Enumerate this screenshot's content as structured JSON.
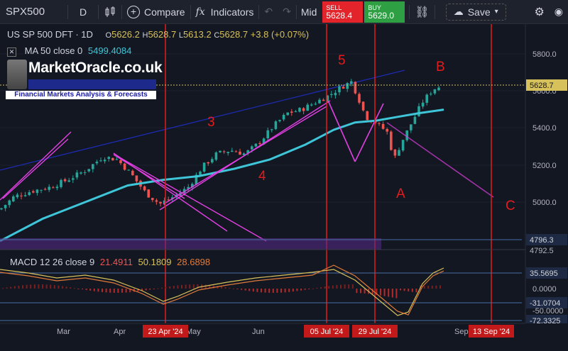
{
  "toolbar": {
    "symbol": "SPX500",
    "interval": "D",
    "compare": "Compare",
    "indicators": "Indicators",
    "price_type": "Mid",
    "sell_label": "SELL",
    "sell_price": "5628.4",
    "buy_label": "BUY",
    "buy_price": "5629.0",
    "save": "Save"
  },
  "legend": {
    "title": "US SP 500 DFT · 1D",
    "open_label": "O",
    "open": "5626.2",
    "high_label": "H",
    "high": "5628.7",
    "low_label": "L",
    "low": "5613.2",
    "close_label": "C",
    "close": "5628.7",
    "change": "+3.8 (+0.07%)",
    "ma_label": "MA 50 close 0",
    "ma_value": "5499.4084",
    "macd_label": "MACD 12 26 close 9",
    "macd_1": "21.4911",
    "macd_2": "50.1809",
    "macd_3": "28.6898"
  },
  "logo": {
    "title": "MarketOracle.co.uk",
    "subtitle": "Financial Markets Analysis & Forecasts"
  },
  "price_axis": [
    "5800.0",
    "5600.0",
    "5400.0",
    "5200.0",
    "5000.0"
  ],
  "price_tags": {
    "last": "5628.7",
    "lower": "4796.3",
    "partial": "4792.5"
  },
  "macd_axis": {
    "a": "35.5695",
    "b": "0.0000",
    "c": "-31.0704",
    "d": "-50.0000",
    "e": "-72.3325"
  },
  "time_axis": [
    "Mar",
    "Apr",
    "May",
    "Jun",
    "Sep"
  ],
  "date_tags": [
    "23 Apr '24",
    "05 Jul '24",
    "29 Jul '24",
    "13 Sep '24"
  ],
  "wave_labels": [
    "3",
    "4",
    "5",
    "A",
    "B",
    "C"
  ],
  "colors": {
    "background": "#131722",
    "up": "#26a69a",
    "down": "#ef5350",
    "ma": "#3ec6d8",
    "vline": "#e31b1b",
    "trend": "#e040e0",
    "channel": "#1d2bb0"
  },
  "chart_data": {
    "type": "candlestick",
    "ma_series": "MA 50",
    "price_range": [
      4750,
      5900
    ],
    "macd_range": [
      -80,
      45
    ]
  }
}
